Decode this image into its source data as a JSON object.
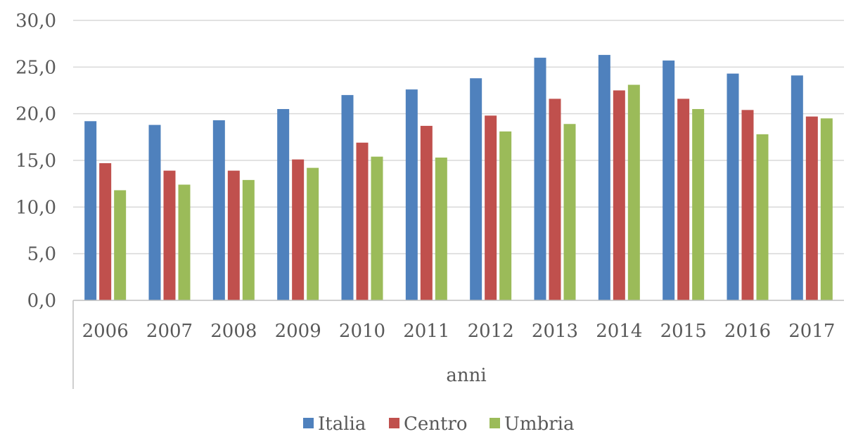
{
  "chart_data": {
    "type": "bar",
    "title": "",
    "xlabel": "anni",
    "ylabel": "",
    "ylim": [
      0,
      30
    ],
    "yticks": [
      "0,0",
      "5,0",
      "10,0",
      "15,0",
      "20,0",
      "25,0",
      "30,0"
    ],
    "grid": true,
    "legend_position": "bottom",
    "categories": [
      "2006",
      "2007",
      "2008",
      "2009",
      "2010",
      "2011",
      "2012",
      "2013",
      "2014",
      "2015",
      "2016",
      "2017"
    ],
    "series": [
      {
        "name": "Italia",
        "color": "#4f81bd",
        "values": [
          19.2,
          18.8,
          19.3,
          20.5,
          22.0,
          22.6,
          23.8,
          26.0,
          26.3,
          25.7,
          24.3,
          24.1
        ]
      },
      {
        "name": "Centro",
        "color": "#c0504d",
        "values": [
          14.7,
          13.9,
          13.9,
          15.1,
          16.9,
          18.7,
          19.8,
          21.6,
          22.5,
          21.6,
          20.4,
          19.7
        ]
      },
      {
        "name": "Umbria",
        "color": "#9bbb59",
        "values": [
          11.8,
          12.4,
          12.9,
          14.2,
          15.4,
          15.3,
          18.1,
          18.9,
          23.1,
          20.5,
          17.8,
          19.5
        ]
      }
    ]
  }
}
